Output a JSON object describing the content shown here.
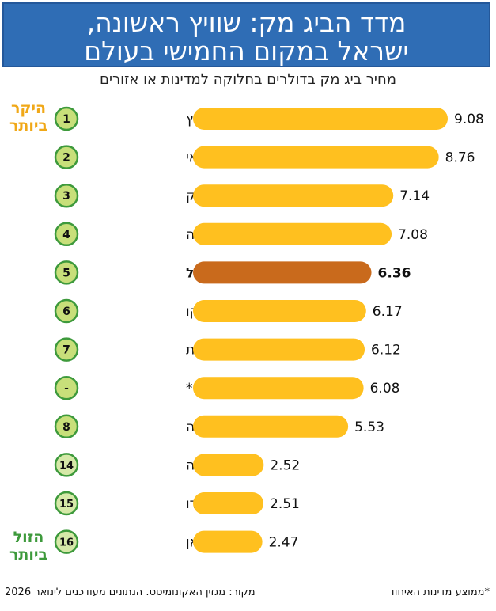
{
  "header": {
    "title_line1": "מדד הביג מק: שוויץ ראשונה,",
    "title_line2": "ישראל במקום החמישי בעולם"
  },
  "subtitle": "מחיר ביג מק בדולרים בחלוקה למדינות או אזורים",
  "labels": {
    "most_expensive": "היקר ביותר",
    "cheapest": "הזול ביותר"
  },
  "footer": {
    "source": "מקור: מגזין האקונומיסט. הנתונים מעודכנים לינואר 2026",
    "note": "*ממוצע מדינות האיחוד"
  },
  "colors": {
    "bar": "#ffc01f",
    "highlight_bar": "#c96a1c",
    "rank_circle_fill": "#c8df7a",
    "rank_circle_fill_low": "#d6e9a8",
    "rank_circle_stroke": "#3e9a3c",
    "header": "#2f6db5"
  },
  "chart_data": {
    "type": "bar",
    "orientation": "horizontal",
    "title": "מדד הביג מק: שוויץ ראשונה, ישראל במקום החמישי בעולם",
    "subtitle": "מחיר ביג מק בדולרים בחלוקה למדינות או אזורים",
    "categories": [
      "שוויץ",
      "אורוגוואי",
      "דנמרק",
      "בריטניה",
      "ישראל",
      "מקסיקו",
      "ארצות הברית",
      "האיחוד האירופי*",
      "ארגנטינה",
      "אינדונזיה",
      "הודו",
      "טייוואן"
    ],
    "ranks": [
      "1",
      "2",
      "3",
      "4",
      "5",
      "6",
      "7",
      "-",
      "8",
      "14",
      "15",
      "16"
    ],
    "values": [
      9.08,
      8.76,
      7.14,
      7.08,
      6.36,
      6.17,
      6.12,
      6.08,
      5.53,
      2.52,
      2.51,
      2.47
    ],
    "value_labels": [
      "9.08",
      "8.76",
      "7.14",
      "7.08",
      "6.36",
      "6.17",
      "6.12",
      "6.08",
      "5.53",
      "2.52",
      "2.51",
      "2.47"
    ],
    "highlight": "ישראל",
    "xlim": [
      0,
      9.08
    ]
  }
}
